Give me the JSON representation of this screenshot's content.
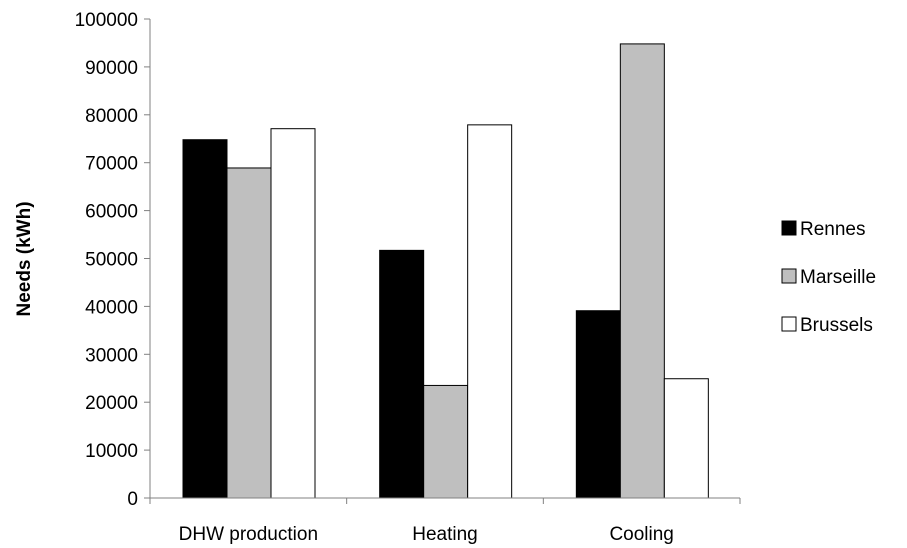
{
  "chart_data": {
    "type": "bar",
    "categories": [
      "DHW production",
      "Heating",
      "Cooling"
    ],
    "series": [
      {
        "name": "Rennes",
        "color": "#000000",
        "values": [
          74800,
          51700,
          39100
        ]
      },
      {
        "name": "Marseille",
        "color": "#bfbfbf",
        "values": [
          68900,
          23500,
          94800
        ]
      },
      {
        "name": "Brussels",
        "color": "#ffffff",
        "values": [
          77100,
          77900,
          24900
        ]
      }
    ],
    "title": "",
    "xlabel": "",
    "ylabel": "Needs (kWh)",
    "ylim": [
      0,
      100000
    ],
    "yticks": [
      0,
      10000,
      20000,
      30000,
      40000,
      50000,
      60000,
      70000,
      80000,
      90000,
      100000
    ],
    "grid": false,
    "legend": "right"
  }
}
